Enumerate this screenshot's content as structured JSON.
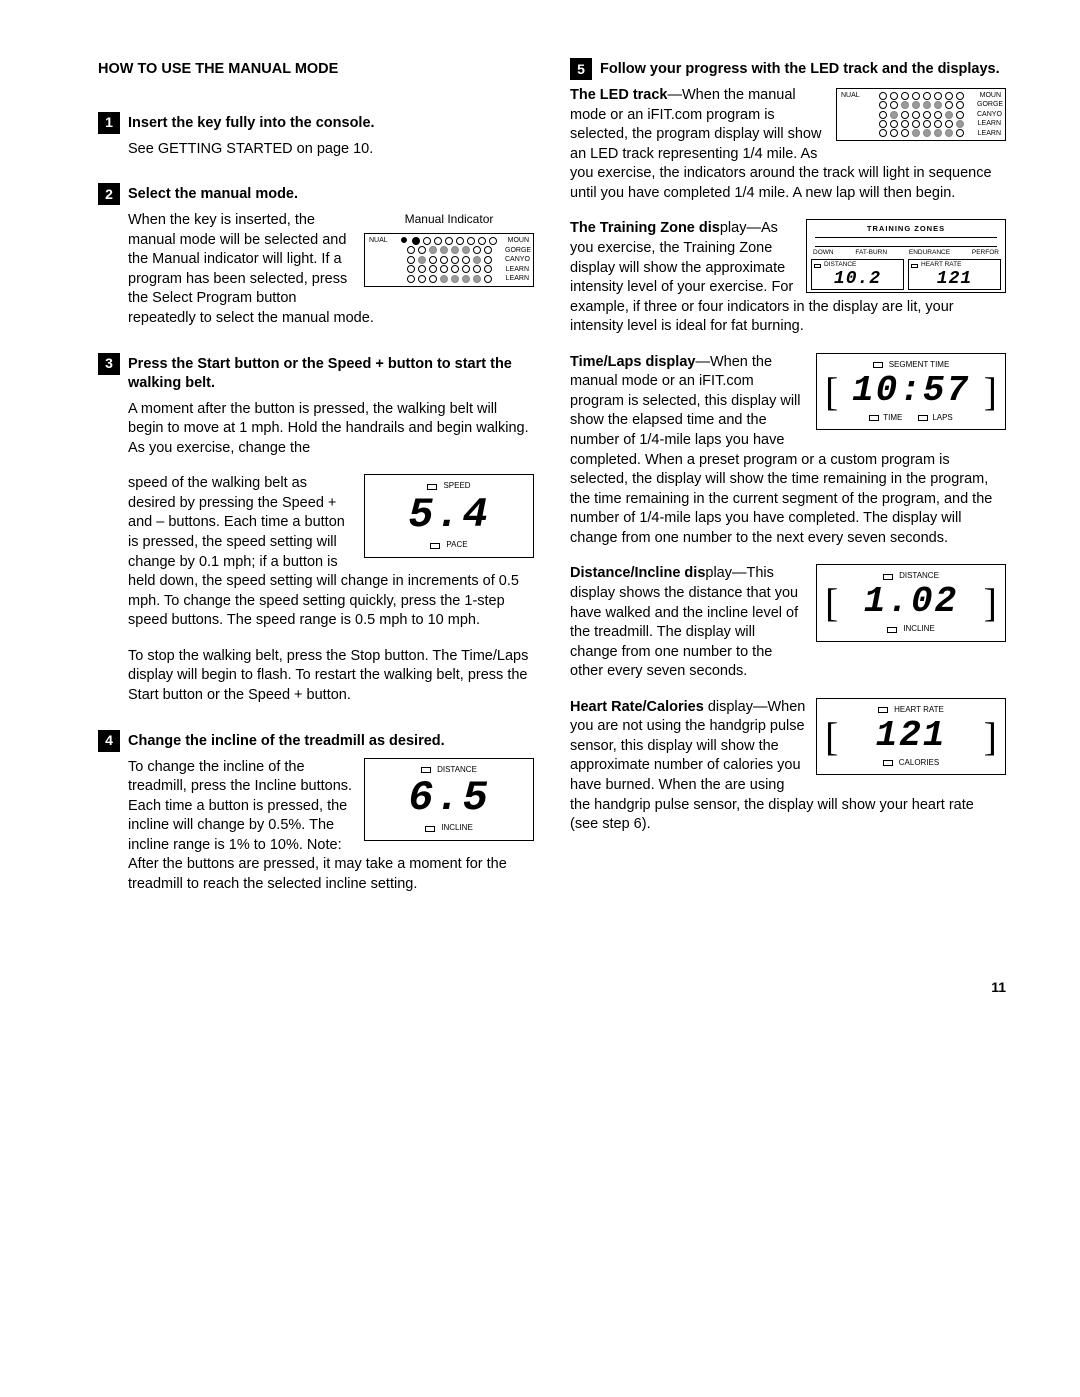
{
  "title": "HOW TO USE THE MANUAL MODE",
  "page_number": "11",
  "steps": {
    "s1": {
      "num": "1",
      "title": "Insert the key fully into the console.",
      "body": "See GETTING STARTED on page 10."
    },
    "s2": {
      "num": "2",
      "title": "Select the manual mode.",
      "p1": "When the key is inserted, the manual mode will be selected and the Manual indicator will light. If a program has been selected, press the Select Pro",
      "p1b": "gram button repeatedly to select the manual mode.",
      "caption": "Manual Indicator"
    },
    "s3": {
      "num": "3",
      "title": "Press the Start button or the Speed + button to start the walking belt.",
      "p1": "A moment after the button is pressed, the walking belt will begin to move at 1 mph. Hold the handrails and begin walking. As you exercise, change the",
      "p2a": "speed of the walking belt as desired by pressing the Speed + and – buttons. Each time a button is pressed, the speed setting will change by 0.1",
      "p2b": "mph; if a button is held down, the speed setting will change in increments of 0.5 mph. To change the speed setting quickly, press the 1-step speed buttons. The speed range is 0.5 mph to 10 mph.",
      "p3": "To stop the walking belt, press the Stop button. The Time/Laps display will begin to flash. To restart the walking belt, press the Start button or the Speed + button."
    },
    "s4": {
      "num": "4",
      "title": "Change the incline of the treadmill as desired.",
      "p1a": "To change the incline of the treadmill, press the Incline buttons. Each time a button is pressed, the incline will change by 0.5%. The",
      "p1b": "incline range is 1% to 10%. Note: After the buttons are pressed, it may take a moment for the treadmill to reach the selected incline setting."
    },
    "s5": {
      "num": "5",
      "title": "Follow your progress with the LED track and the displays.",
      "led_h": "The LED track",
      "led_a": "—When the manual mode or an iFIT.com program is selected, the program display will show an LED track representing 1/4",
      "led_b": "mile. As you exercise, the indicators around the track will light in sequence until you have completed 1/4 mile. A new lap will then begin.",
      "tz_h": "The Training Zone dis",
      "tz_a": "play—As you exercise, the Training Zone display will show the approximate intensity level of your exercise. For ex",
      "tz_b": "ample, if three or four indicators in the display are lit, your intensity level is ideal for fat burning.",
      "tl_h": "Time/Laps display",
      "tl_a": "—When the manual mode or an iFIT.com program is selected, this display will show the elapsed time and the number of",
      "tl_b": "1/4-mile laps you have completed. When a preset program or a custom program is selected, the display will show the time remaining in the program, the time remaining in the current segment of the program, and the number of 1/4-mile laps you have completed. The display will change from one number to the next every seven seconds.",
      "di_h": "Distance/Incline dis",
      "di_a": "play—This display shows the distance that you have walked and the incline level of the treadmill. The display will",
      "di_b": "change from one number to the other every seven seconds.",
      "hr_h": "Heart Rate/Calories",
      "hr_a": "display—When you are not using the handgrip pulse sensor, this display will show the approximate number of",
      "hr_b": "calories you have burned. When the are using the handgrip pulse sensor, the display will show your heart rate (see step 6)."
    }
  },
  "led": {
    "left": [
      "NUAL",
      "",
      "",
      "",
      ""
    ],
    "right": [
      "MOUN",
      "GORGE",
      "CANYO",
      "LEARN",
      "LEARN"
    ],
    "rows": [
      [
        1,
        0,
        0,
        0,
        0,
        0,
        0,
        0
      ],
      [
        0,
        0,
        2,
        2,
        2,
        2,
        0,
        0
      ],
      [
        0,
        2,
        0,
        0,
        0,
        0,
        2,
        0
      ],
      [
        0,
        0,
        0,
        0,
        0,
        0,
        0,
        0
      ],
      [
        0,
        0,
        0,
        2,
        2,
        2,
        2,
        0
      ]
    ]
  },
  "led2": {
    "left": [
      "NUAL",
      "",
      "",
      "",
      ""
    ],
    "right": [
      "MOUN",
      "GORGE",
      "CANYO",
      "LEARN",
      "LEARN"
    ],
    "rows": [
      [
        0,
        0,
        0,
        0,
        0,
        0,
        0,
        0
      ],
      [
        0,
        0,
        2,
        2,
        2,
        2,
        0,
        0
      ],
      [
        0,
        2,
        0,
        0,
        0,
        0,
        2,
        0
      ],
      [
        0,
        0,
        0,
        0,
        0,
        0,
        0,
        2
      ],
      [
        0,
        0,
        0,
        2,
        2,
        2,
        2,
        0
      ]
    ]
  },
  "lcd_speed": {
    "top": "SPEED",
    "val": "5.4",
    "bot": "PACE"
  },
  "lcd_incline": {
    "top": "DISTANCE",
    "val": "6.5",
    "bot": "INCLINE"
  },
  "lcd_time": {
    "top": "SEGMENT TIME",
    "val": "10:57",
    "bl": "TIME",
    "br": "LAPS"
  },
  "lcd_dist": {
    "top": "DISTANCE",
    "val": "1.02",
    "bot": "INCLINE"
  },
  "lcd_hr": {
    "top": "HEART RATE",
    "val": "121",
    "bot": "CALORIES"
  },
  "tz": {
    "title": "TRAINING ZONES",
    "zones": [
      "DOWN",
      "FAT-BURN",
      "ENDURANCE",
      "PERFOR"
    ],
    "d_label": "DISTANCE",
    "d_val": "10.2",
    "h_label": "HEART RATE",
    "h_val": "121"
  }
}
